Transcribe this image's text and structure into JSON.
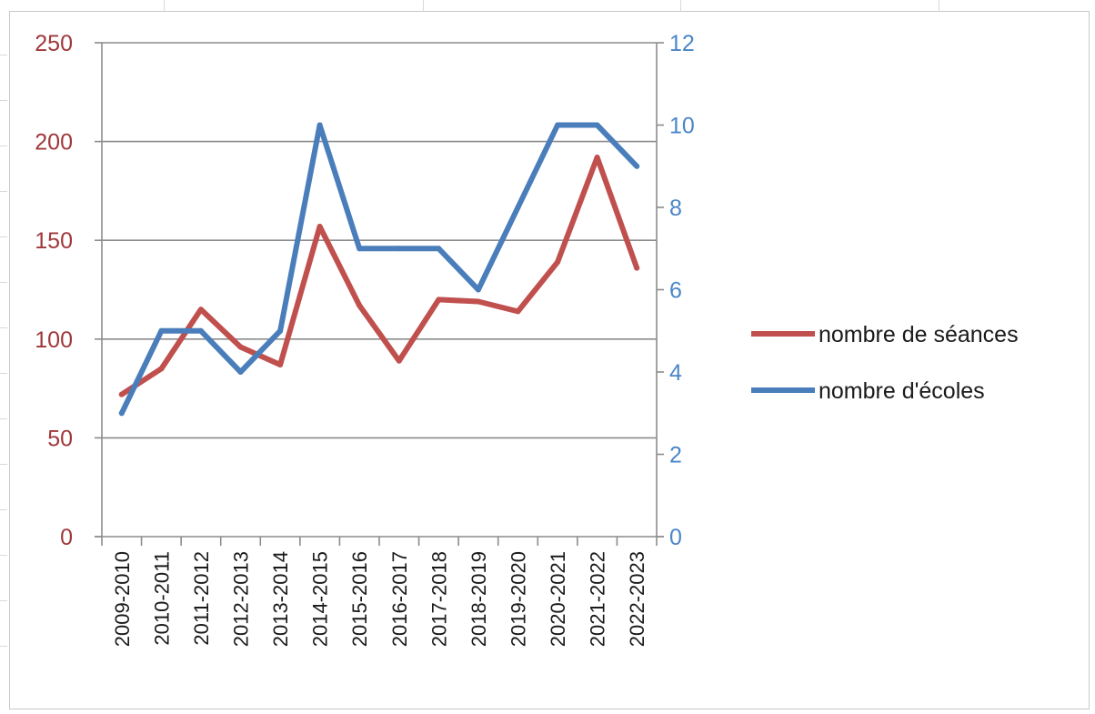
{
  "chart_data": {
    "type": "line",
    "title": "",
    "xlabel": "",
    "ylabel": "",
    "categories": [
      "2009-2010",
      "2010-2011",
      "2011-2012",
      "2012-2013",
      "2013-2014",
      "2014-2015",
      "2015-2016",
      "2016-2017",
      "2017-2018",
      "2018-2019",
      "2019-2020",
      "2020-2021",
      "2021-2022",
      "2022-2023"
    ],
    "y_left": {
      "range": [
        0,
        250
      ],
      "ticks": [
        0,
        50,
        100,
        150,
        200,
        250
      ],
      "color": "#a0383b"
    },
    "y_right": {
      "range": [
        0,
        12
      ],
      "ticks": [
        0,
        2,
        4,
        6,
        8,
        10,
        12
      ],
      "color": "#4a86c8"
    },
    "grid": true,
    "legend_position": "right",
    "series": [
      {
        "name": "nombre de séances",
        "axis": "left",
        "color": "#c0504d",
        "values": [
          72,
          85,
          115,
          96,
          87,
          157,
          117,
          89,
          120,
          119,
          114,
          139,
          192,
          136
        ]
      },
      {
        "name": "nombre d'écoles",
        "axis": "right",
        "color": "#4a7ebb",
        "values": [
          3,
          5,
          5,
          4,
          5,
          10,
          7,
          7,
          7,
          6,
          8,
          10,
          10,
          9
        ]
      }
    ]
  }
}
